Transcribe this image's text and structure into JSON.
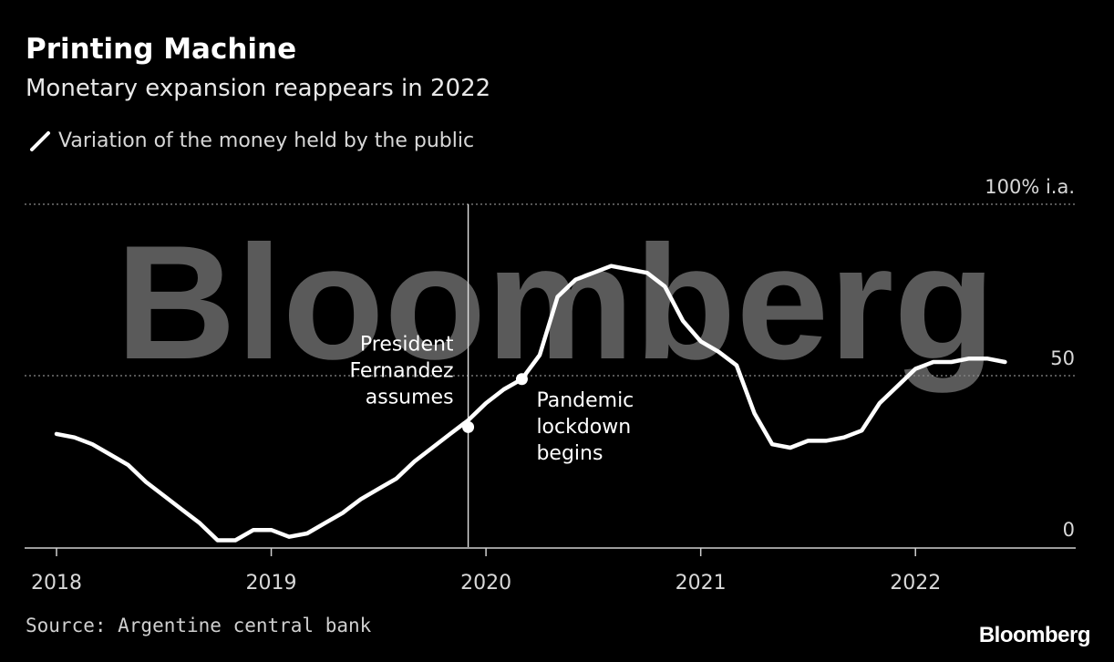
{
  "header": {
    "title": "Printing Machine",
    "subtitle": "Monetary expansion reappears in 2022"
  },
  "legend": {
    "label": "Variation of the money held by the public",
    "color": "#ffffff"
  },
  "footer": {
    "source": "Source: Argentine central bank",
    "brand": "Bloomberg"
  },
  "watermark": "Bloomberg",
  "colors": {
    "background": "#000000",
    "line": "#ffffff",
    "grid": "#8a8a8a",
    "watermark": "#5a5a5a"
  },
  "chart_data": {
    "type": "line",
    "xlabel": "",
    "ylabel": "",
    "xlim": [
      2018.0,
      2022.5
    ],
    "ylim": [
      0,
      100
    ],
    "y_ticks": [
      {
        "value": 100,
        "label": "100% i.a."
      },
      {
        "value": 50,
        "label": "50"
      },
      {
        "value": 0,
        "label": "0"
      }
    ],
    "x_ticks": [
      {
        "value": 2018,
        "label": "2018"
      },
      {
        "value": 2019,
        "label": "2019"
      },
      {
        "value": 2020,
        "label": "2020"
      },
      {
        "value": 2021,
        "label": "2021"
      },
      {
        "value": 2022,
        "label": "2022"
      }
    ],
    "grid": "dotted horizontal at 50 and 100",
    "series": [
      {
        "name": "Variation of the money held by the public",
        "x": [
          2018.0,
          2018.083,
          2018.167,
          2018.25,
          2018.333,
          2018.417,
          2018.5,
          2018.583,
          2018.667,
          2018.75,
          2018.833,
          2018.917,
          2019.0,
          2019.083,
          2019.167,
          2019.25,
          2019.333,
          2019.417,
          2019.5,
          2019.583,
          2019.667,
          2019.75,
          2019.833,
          2019.917,
          2020.0,
          2020.083,
          2020.167,
          2020.25,
          2020.333,
          2020.417,
          2020.5,
          2020.583,
          2020.667,
          2020.75,
          2020.833,
          2020.917,
          2021.0,
          2021.083,
          2021.167,
          2021.25,
          2021.333,
          2021.417,
          2021.5,
          2021.583,
          2021.667,
          2021.75,
          2021.833,
          2021.917,
          2022.0,
          2022.083,
          2022.167,
          2022.25,
          2022.333,
          2022.417
        ],
        "values": [
          33,
          32,
          30,
          27,
          24,
          19,
          15,
          11,
          7,
          2,
          2,
          5,
          5,
          3,
          4,
          7,
          10,
          14,
          17,
          20,
          25,
          29,
          33,
          37,
          42,
          46,
          49,
          56,
          73,
          78,
          80,
          82,
          81,
          80,
          76,
          66,
          60,
          57,
          53,
          39,
          30,
          29,
          31,
          31,
          32,
          34,
          42,
          47,
          52,
          54,
          54,
          55,
          55,
          54
        ]
      }
    ],
    "annotations": [
      {
        "label": "President\nFernandez\nassumes",
        "x": 2019.917,
        "value": 35,
        "vertical_line": true
      },
      {
        "label": "Pandemic\nlockdown\nbegins",
        "x": 2020.167,
        "value": 49,
        "vertical_line": false
      }
    ]
  }
}
